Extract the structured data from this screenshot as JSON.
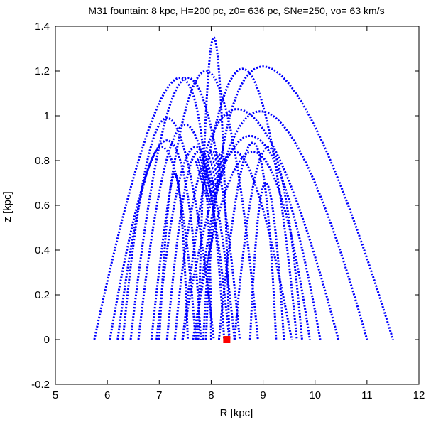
{
  "chart_data": {
    "type": "scatter",
    "title": "M31 fountain: 8 kpc, H=200 pc, z0= 636 pc, SNe=250,  vo= 63 km/s",
    "xlabel": "R [kpc]",
    "ylabel": "z [kpc]",
    "xlim": [
      5,
      12
    ],
    "ylim": [
      -0.2,
      1.4
    ],
    "xticks": [
      "5",
      "6",
      "7",
      "8",
      "9",
      "10",
      "11",
      "12"
    ],
    "yticks": [
      "-0.2",
      "0",
      "0.2",
      "0.4",
      "0.6",
      "0.8",
      "1",
      "1.2",
      "1.4"
    ],
    "grid": false,
    "legend": "none",
    "trajectory_color": "#0000ff",
    "source_color": "#ff0000",
    "source_point": {
      "x": 8.3,
      "y": 0.0
    },
    "trajectories": [
      {
        "launch": [
          7.75,
          0.0
        ],
        "apex": [
          8.05,
          1.35
        ],
        "land": [
          8.35,
          0.0
        ]
      },
      {
        "launch": [
          5.75,
          0.0
        ],
        "apex": [
          7.4,
          1.17
        ],
        "land": [
          8.0,
          0.0
        ]
      },
      {
        "launch": [
          6.45,
          0.0
        ],
        "apex": [
          7.55,
          1.17
        ],
        "land": [
          8.55,
          0.0
        ]
      },
      {
        "launch": [
          6.85,
          0.0
        ],
        "apex": [
          7.9,
          1.2
        ],
        "land": [
          8.9,
          0.0
        ]
      },
      {
        "launch": [
          7.45,
          0.0
        ],
        "apex": [
          8.6,
          1.21
        ],
        "land": [
          9.65,
          0.0
        ]
      },
      {
        "launch": [
          7.9,
          0.0
        ],
        "apex": [
          9.0,
          1.22
        ],
        "land": [
          11.5,
          0.0
        ]
      },
      {
        "launch": [
          6.3,
          0.0
        ],
        "apex": [
          7.15,
          0.99
        ],
        "land": [
          8.05,
          0.0
        ]
      },
      {
        "launch": [
          6.6,
          0.0
        ],
        "apex": [
          7.5,
          0.96
        ],
        "land": [
          8.35,
          0.0
        ]
      },
      {
        "launch": [
          7.3,
          0.0
        ],
        "apex": [
          8.5,
          1.03
        ],
        "land": [
          10.45,
          0.0
        ]
      },
      {
        "launch": [
          7.7,
          0.0
        ],
        "apex": [
          8.95,
          1.02
        ],
        "land": [
          11.0,
          0.0
        ]
      },
      {
        "launch": [
          6.05,
          0.0
        ],
        "apex": [
          7.15,
          0.89
        ],
        "land": [
          7.8,
          0.0
        ]
      },
      {
        "launch": [
          6.95,
          0.0
        ],
        "apex": [
          7.7,
          0.86
        ],
        "land": [
          8.45,
          0.0
        ]
      },
      {
        "launch": [
          7.45,
          0.0
        ],
        "apex": [
          8.75,
          0.91
        ],
        "land": [
          10.1,
          0.0
        ]
      },
      {
        "launch": [
          7.65,
          0.0
        ],
        "apex": [
          8.8,
          0.84
        ],
        "land": [
          9.9,
          0.0
        ]
      },
      {
        "launch": [
          6.2,
          0.0
        ],
        "apex": [
          7.05,
          0.86
        ],
        "land": [
          7.7,
          0.0
        ]
      },
      {
        "launch": [
          7.15,
          0.0
        ],
        "apex": [
          7.75,
          0.84
        ],
        "land": [
          8.25,
          0.0
        ]
      },
      {
        "launch": [
          7.85,
          0.0
        ],
        "apex": [
          8.45,
          0.84
        ],
        "land": [
          9.55,
          0.0
        ]
      },
      {
        "launch": [
          8.15,
          0.0
        ],
        "apex": [
          8.8,
          0.88
        ],
        "land": [
          9.25,
          0.0
        ]
      },
      {
        "launch": [
          8.45,
          0.0
        ],
        "apex": [
          9.1,
          0.86
        ],
        "land": [
          9.75,
          0.0
        ]
      },
      {
        "launch": [
          7.0,
          0.0
        ],
        "apex": [
          7.3,
          0.74
        ],
        "land": [
          7.55,
          0.0
        ]
      },
      {
        "launch": [
          8.75,
          0.0
        ],
        "apex": [
          9.05,
          0.7
        ],
        "land": [
          9.4,
          0.0
        ]
      }
    ],
    "wave_series": {
      "center_x": 8.0,
      "count": 16,
      "z_range": [
        0.62,
        0.84
      ],
      "half_width_range": [
        0.05,
        0.3
      ]
    }
  }
}
